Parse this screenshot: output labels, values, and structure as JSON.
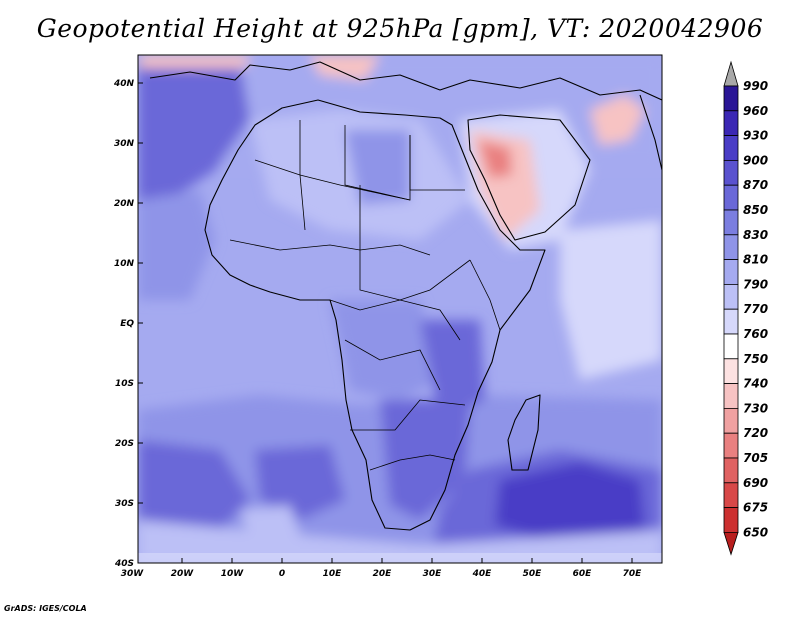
{
  "title": "Geopotential Height at 925hPa [gpm], VT: 2020042906",
  "credit": "GrADS: IGES/COLA",
  "lat_labels": [
    "40N",
    "30N",
    "20N",
    "10N",
    "EQ",
    "10S",
    "20S",
    "30S",
    "40S"
  ],
  "lon_labels": [
    "30W",
    "20W",
    "10W",
    "0",
    "10E",
    "20E",
    "30E",
    "40E",
    "50E",
    "60E",
    "70E"
  ],
  "colorbar": {
    "labels": [
      "990",
      "960",
      "930",
      "900",
      "870",
      "850",
      "830",
      "810",
      "790",
      "770",
      "760",
      "750",
      "740",
      "730",
      "720",
      "705",
      "690",
      "675",
      "650"
    ],
    "colors": [
      "#2a1696",
      "#3b27b4",
      "#4a3dc6",
      "#5a52cf",
      "#6a68d8",
      "#7b7ee0",
      "#8f94e8",
      "#a5aaf0",
      "#bcc0f6",
      "#d6d8fb",
      "#ffffff",
      "#fde2e2",
      "#f7c3c3",
      "#f0a1a1",
      "#e98080",
      "#e06262",
      "#d84848",
      "#cc3030",
      "#b81e1e"
    ]
  },
  "map_colors": {
    "deep": "#4a3dc6",
    "dark": "#6a68d8",
    "mid": "#8f94e8",
    "light": "#a5aaf0",
    "pale": "#bcc0f6",
    "paler": "#d6d8fb",
    "white": "#f4f4fe",
    "pink": "#f7c3c3",
    "red": "#e98080"
  }
}
